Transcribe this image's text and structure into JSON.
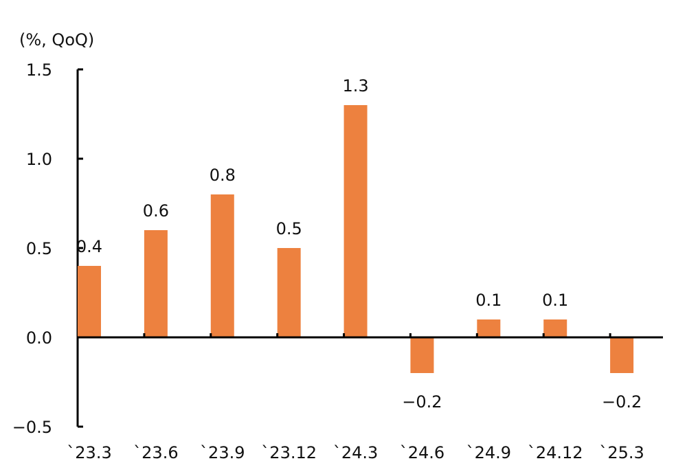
{
  "chart_data": {
    "type": "bar",
    "unit_label": "(%, QoQ)",
    "categories": [
      "`23.3",
      "`23.6",
      "`23.9",
      "`23.12",
      "`24.3",
      "`24.6",
      "`24.9",
      "`24.12",
      "`25.3"
    ],
    "values": [
      0.4,
      0.6,
      0.8,
      0.5,
      1.3,
      -0.2,
      0.1,
      0.1,
      -0.2
    ],
    "data_labels": [
      "0.4",
      "0.6",
      "0.8",
      "0.5",
      "1.3",
      "−0.2",
      "0.1",
      "0.1",
      "−0.2"
    ],
    "y_ticks": [
      1.5,
      1.0,
      0.5,
      0.0,
      -0.5
    ],
    "y_tick_labels": [
      "1.5",
      "1.0",
      "0.5",
      "0.0",
      "−0.5"
    ],
    "ylim": [
      -0.5,
      1.5
    ],
    "grid": false,
    "legend": "none",
    "bar_color": "#ED813F",
    "axis_color": "#000000"
  }
}
